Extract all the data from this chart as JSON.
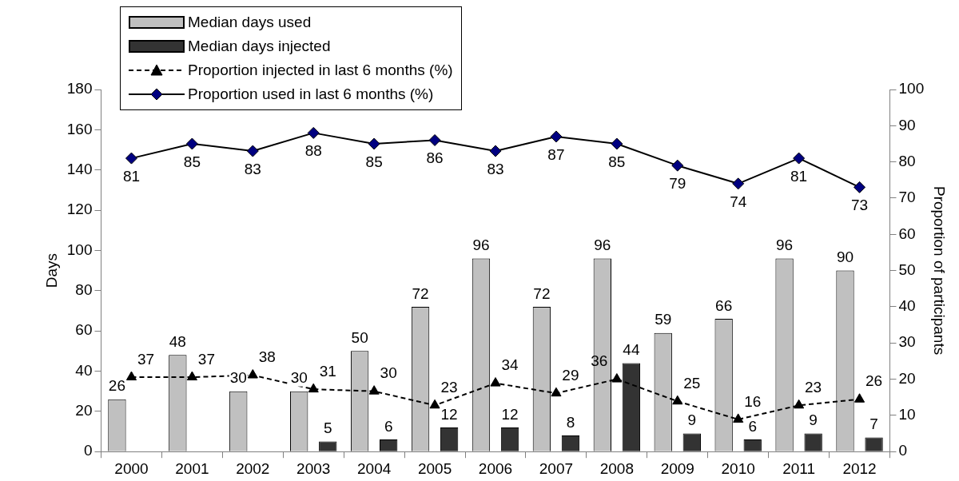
{
  "chart_data": {
    "type": "bar",
    "categories": [
      "2000",
      "2001",
      "2002",
      "2003",
      "2004",
      "2005",
      "2006",
      "2007",
      "2008",
      "2009",
      "2010",
      "2011",
      "2012"
    ],
    "ylabel": "Days",
    "y2label": "Proportion of participants",
    "ylim": [
      0,
      180
    ],
    "yticks": [
      0,
      20,
      40,
      60,
      80,
      100,
      120,
      140,
      160,
      180
    ],
    "y2lim": [
      0,
      100
    ],
    "y2ticks": [
      0,
      10,
      20,
      30,
      40,
      50,
      60,
      70,
      80,
      90,
      100
    ],
    "grid": false,
    "legend": "top left",
    "data_labels": true,
    "series": [
      {
        "name": "Median days used",
        "color": "#c0c0c0",
        "values": [
          26,
          48,
          30,
          30,
          50,
          72,
          96,
          72,
          96,
          59,
          66,
          96,
          90
        ]
      },
      {
        "name": "Median days injected",
        "color": "#333333",
        "values": [
          null,
          null,
          null,
          5,
          6,
          12,
          12,
          8,
          44,
          9,
          6,
          9,
          7
        ]
      },
      {
        "name": "Proportion injected in last 6 months (%)",
        "type": "line",
        "color": "#000000",
        "marker": "triangle",
        "line_style": "dashed",
        "values": [
          37,
          37,
          38,
          31,
          30,
          23,
          34,
          29,
          36,
          25,
          16,
          23,
          26
        ]
      },
      {
        "name": "Proportion used in last 6 months (%)",
        "type": "line",
        "axis": "y2",
        "color": "#000080",
        "marker": "diamond",
        "line_style": "solid",
        "values": [
          81,
          85,
          83,
          88,
          85,
          86,
          83,
          87,
          85,
          79,
          74,
          81,
          73
        ]
      }
    ]
  }
}
